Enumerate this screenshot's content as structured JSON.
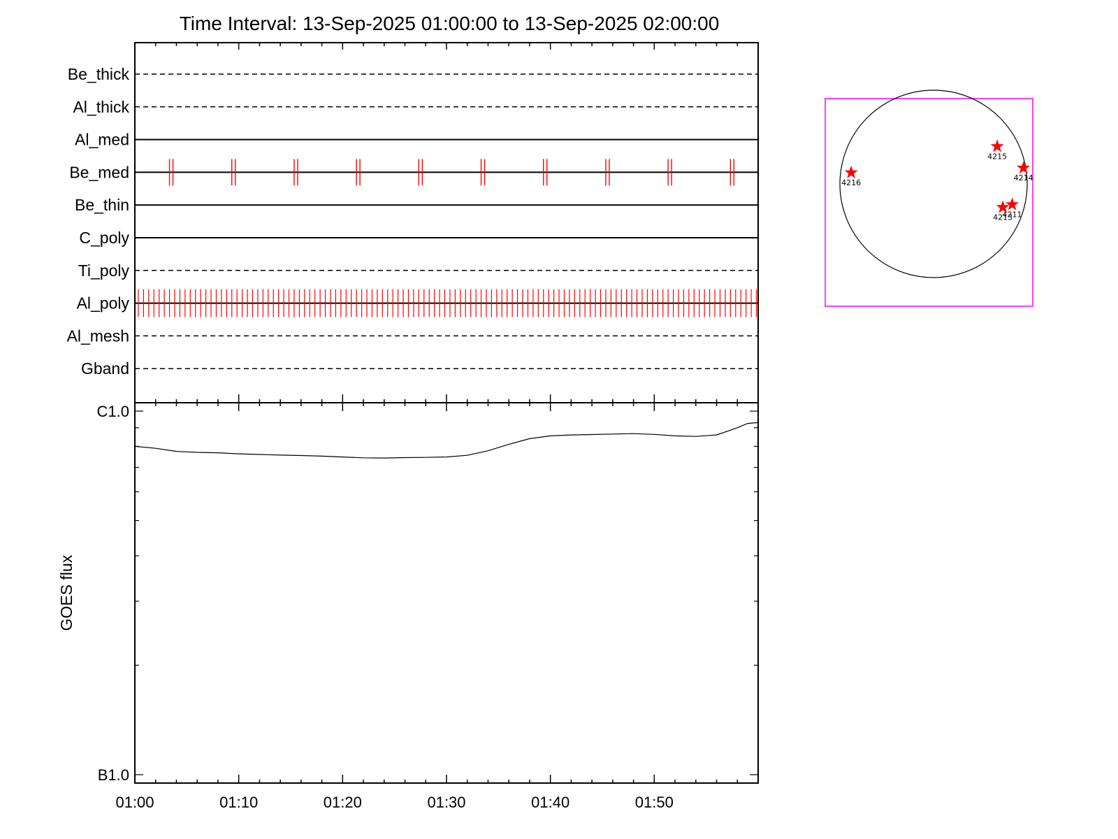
{
  "chart_data": [
    {
      "type": "line",
      "title": "Time Interval: 13-Sep-2025 01:00:00 to 13-Sep-2025 02:00:00",
      "subtitle": "",
      "x_ticks": [
        "01:00",
        "01:10",
        "01:20",
        "01:30",
        "01:40",
        "01:50"
      ],
      "xlim": [
        "01:00",
        "02:00"
      ],
      "filter_rows": [
        {
          "name": "Be_thick",
          "style": "dashed"
        },
        {
          "name": "Al_thick",
          "style": "dashed"
        },
        {
          "name": "Al_med",
          "style": "solid"
        },
        {
          "name": "Be_med",
          "style": "solid"
        },
        {
          "name": "Be_thin",
          "style": "solid"
        },
        {
          "name": "C_poly",
          "style": "solid"
        },
        {
          "name": "Ti_poly",
          "style": "dashed"
        },
        {
          "name": "Al_poly",
          "style": "solid"
        },
        {
          "name": "Al_mesh",
          "style": "dashed"
        },
        {
          "name": "Gband",
          "style": "dashed"
        }
      ],
      "exposure_markers": {
        "color": "#ff0000",
        "Be_med": [
          "01:03:30",
          "01:09:30",
          "01:15:30",
          "01:21:30",
          "01:27:30",
          "01:33:30",
          "01:39:30",
          "01:45:30",
          "01:51:30",
          "01:57:30"
        ],
        "Al_poly": {
          "start": "01:00:20",
          "end": "01:59:50",
          "interval_s": 30
        }
      }
    },
    {
      "type": "line",
      "ylabel": "GOES flux",
      "y_scale": "log",
      "ylim": [
        "B1.0",
        "C1.0"
      ],
      "y_ticks": [
        "C1.0",
        "B1.0"
      ],
      "x_ticks": [
        "01:00",
        "01:10",
        "01:20",
        "01:30",
        "01:40",
        "01:50"
      ],
      "series": [
        {
          "color": "#000000",
          "x": [
            "01:00",
            "01:02",
            "01:04",
            "01:06",
            "01:08",
            "01:10",
            "01:12",
            "01:14",
            "01:16",
            "01:18",
            "01:20",
            "01:22",
            "01:24",
            "01:26",
            "01:28",
            "01:30",
            "01:32",
            "01:34",
            "01:36",
            "01:38",
            "01:40",
            "01:42",
            "01:44",
            "01:46",
            "01:48",
            "01:50",
            "01:52",
            "01:54",
            "01:56",
            "01:58",
            "01:59",
            "02:00"
          ],
          "values": [
            8.0,
            7.9,
            7.75,
            7.7,
            7.68,
            7.63,
            7.6,
            7.57,
            7.55,
            7.52,
            7.48,
            7.44,
            7.43,
            7.45,
            7.46,
            7.48,
            7.56,
            7.78,
            8.1,
            8.4,
            8.55,
            8.6,
            8.62,
            8.65,
            8.67,
            8.63,
            8.55,
            8.52,
            8.6,
            9.0,
            9.25,
            9.3
          ]
        }
      ]
    },
    {
      "type": "scatter",
      "title": "",
      "box_color": "#ff00ff",
      "marker_color": "#ff0000",
      "regions": [
        {
          "label": "4215",
          "x": 0.68,
          "y": 0.4
        },
        {
          "label": "4214",
          "x": 0.96,
          "y": 0.17
        },
        {
          "label": "4216",
          "x": -0.88,
          "y": 0.12
        },
        {
          "label": "4211",
          "x": 0.84,
          "y": -0.22
        },
        {
          "label": "4213",
          "x": 0.74,
          "y": -0.25
        }
      ]
    }
  ]
}
